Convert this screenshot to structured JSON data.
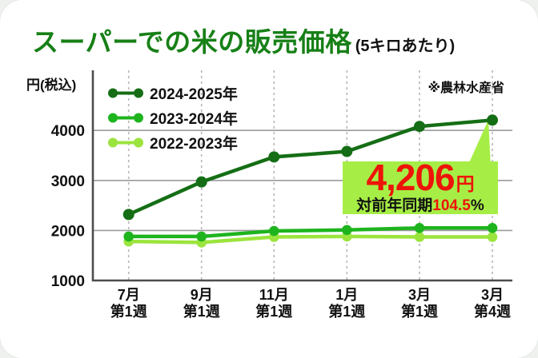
{
  "title": {
    "main": "スーパーでの米の販売価格",
    "suffix": "(5キロあたり)"
  },
  "source_note": "※農林水産省",
  "callout": {
    "value": "4,206",
    "unit": "円",
    "comparison_label": "対前年同期",
    "comparison_value": "104.5",
    "comparison_suffix": "%"
  },
  "colors": {
    "title_green": "#178017",
    "red": "#ee1409",
    "callout_bg": "#a6ee46",
    "grid_gray": "#9b9b9b",
    "dash_gray": "#b7b7b7",
    "axis_gray": "#4d4d4d",
    "text_black": "#111111"
  },
  "chart_data": {
    "type": "line",
    "title": "スーパーでの米の販売価格(5キロあたり)",
    "ylabel": "円(税込)",
    "xlabel": "",
    "x_tick_labels": [
      [
        "7月",
        "第1週"
      ],
      [
        "9月",
        "第1週"
      ],
      [
        "11月",
        "第1週"
      ],
      [
        "1月",
        "第1週"
      ],
      [
        "3月",
        "第1週"
      ],
      [
        "3月",
        "第4週"
      ]
    ],
    "y_ticks": [
      1000,
      2000,
      3000,
      4000
    ],
    "ylim": [
      1000,
      4400
    ],
    "grid": {
      "horizontal": "solid",
      "vertical": "dashed"
    },
    "legend_position": "top-left",
    "series": [
      {
        "name": "2024-2025年",
        "color": "#156e15",
        "values": [
          2320,
          2970,
          3470,
          3580,
          4080,
          4206
        ]
      },
      {
        "name": "2023-2024年",
        "color": "#1eb41e",
        "values": [
          1880,
          1880,
          1990,
          2010,
          2050,
          2050
        ]
      },
      {
        "name": "2022-2023年",
        "color": "#9be43e",
        "values": [
          1780,
          1760,
          1870,
          1880,
          1870,
          1870
        ]
      }
    ],
    "annotation": {
      "text": "4,206円 対前年同期104.5%",
      "target_series": "2024-2025年",
      "target_category": "3月第4週"
    }
  }
}
